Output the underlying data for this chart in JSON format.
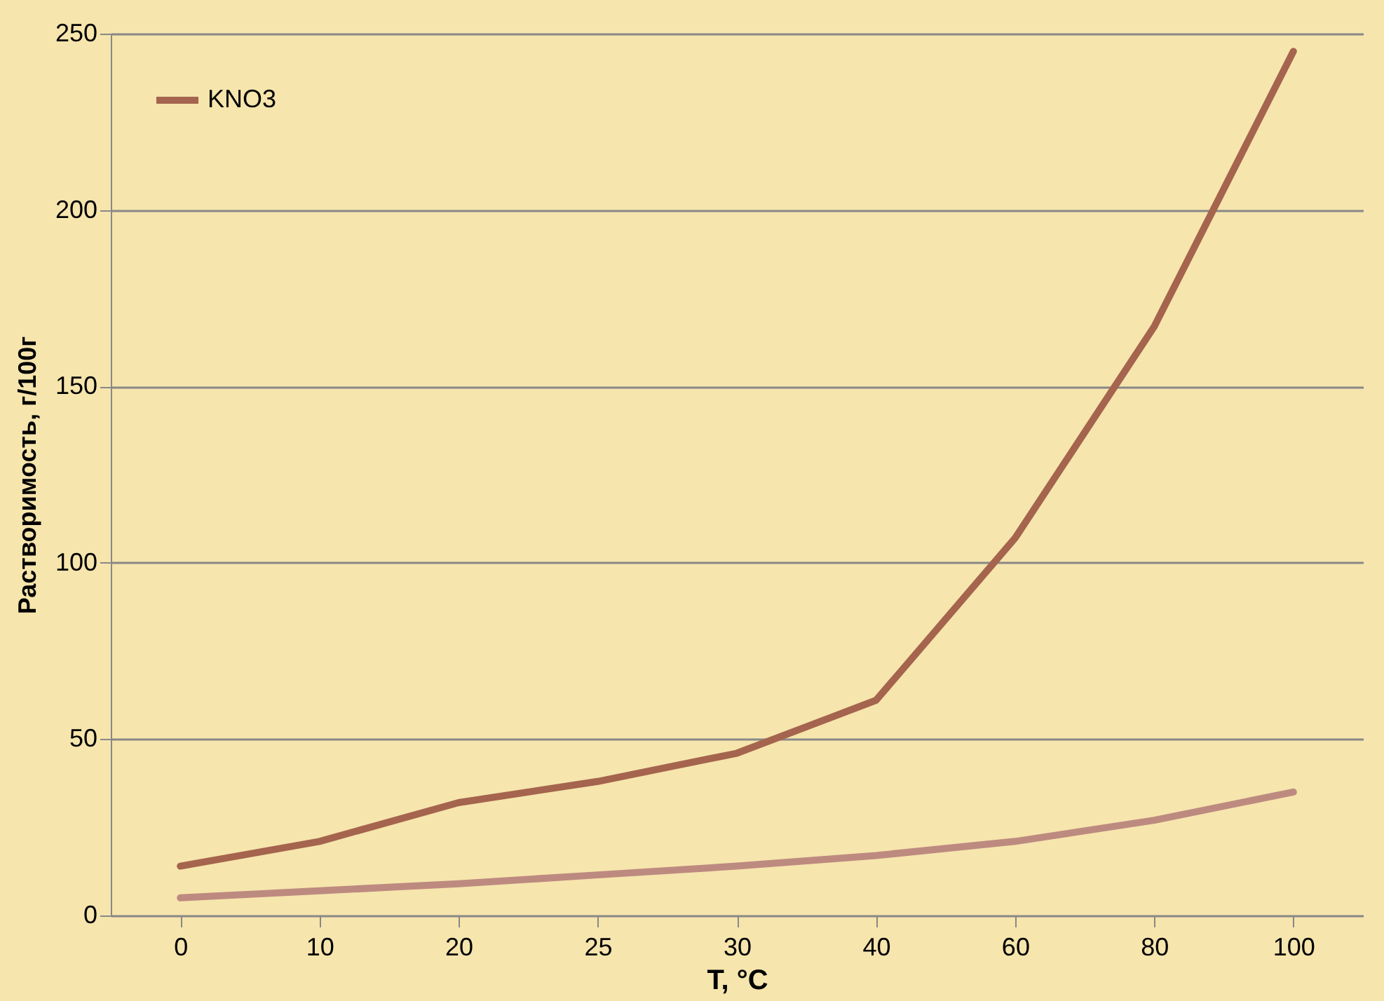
{
  "chart_data": {
    "type": "line",
    "xlabel": "T, °C",
    "ylabel": "Растворимость, г/100г",
    "categories": [
      "0",
      "10",
      "20",
      "25",
      "30",
      "40",
      "60",
      "80",
      "100"
    ],
    "series": [
      {
        "name": "KNO3",
        "color": "#a5644e",
        "values": [
          14,
          21,
          32,
          38,
          46,
          61,
          107,
          167,
          245
        ]
      },
      {
        "color": "#bd8a80",
        "values": [
          5,
          7,
          9,
          11.5,
          14,
          17,
          21,
          27,
          35
        ]
      }
    ],
    "ylim": [
      0,
      250
    ],
    "yticks": [
      0,
      50,
      100,
      150,
      200,
      250
    ],
    "grid": "y",
    "legend": "top left",
    "marker": "none",
    "line_style": "solid"
  }
}
